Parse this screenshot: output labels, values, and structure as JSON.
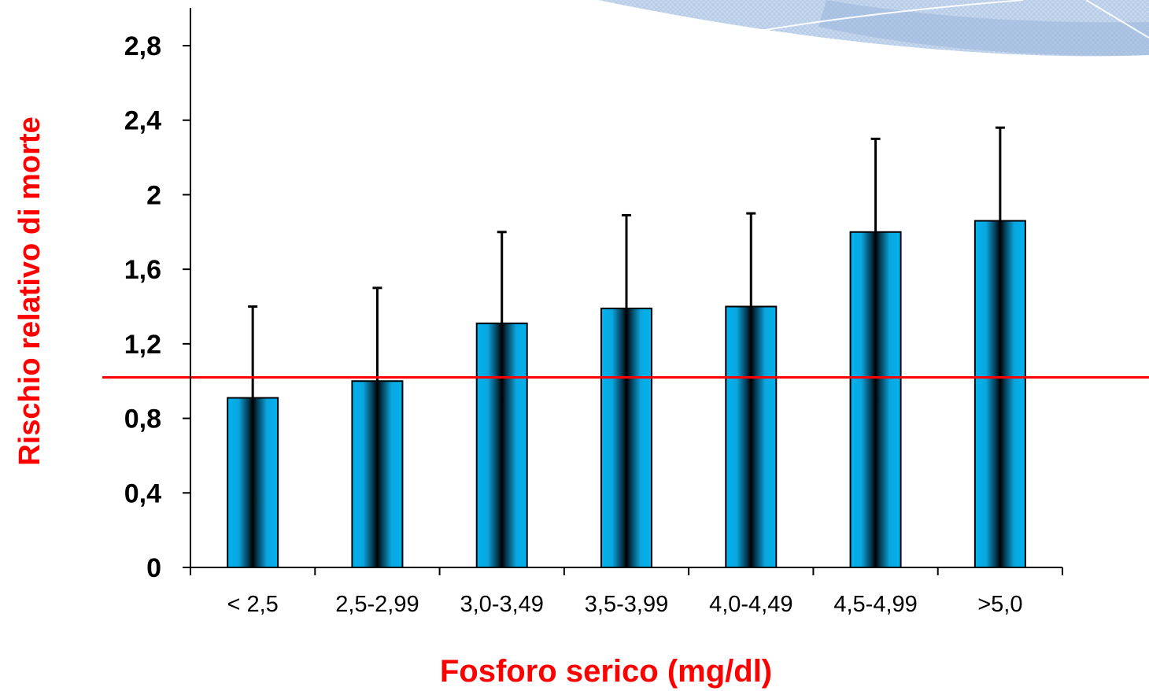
{
  "chart_data": {
    "type": "bar",
    "title": "",
    "xlabel": "Fosforo serico (mg/dl)",
    "ylabel": "Rischio relativo di morte",
    "categories": [
      "< 2,5",
      "2,5-2,99",
      "3,0-3,49",
      "3,5-3,99",
      "4,0-4,49",
      "4,5-4,99",
      ">5,0"
    ],
    "values": [
      0.91,
      1.0,
      1.31,
      1.39,
      1.4,
      1.8,
      1.86
    ],
    "error_upper": [
      1.4,
      1.5,
      1.8,
      1.89,
      1.9,
      2.3,
      2.36
    ],
    "ylim": [
      0,
      3.0
    ],
    "yticks": [
      0,
      0.4,
      0.8,
      1.2,
      1.6,
      2.0,
      2.4,
      2.8
    ],
    "ytick_labels": [
      "0",
      "0,4",
      "0,8",
      "1,2",
      "1,6",
      "2",
      "2,4",
      "2,8"
    ],
    "reference_line": 1.02,
    "grid": false,
    "legend": "none",
    "colors": {
      "bar": "#00b0f0",
      "bar_dark": "#000000",
      "reference_line": "#ff0000",
      "axis_title": "#ff0000",
      "axis": "#000000",
      "decoration": "#a9c4e4"
    }
  }
}
